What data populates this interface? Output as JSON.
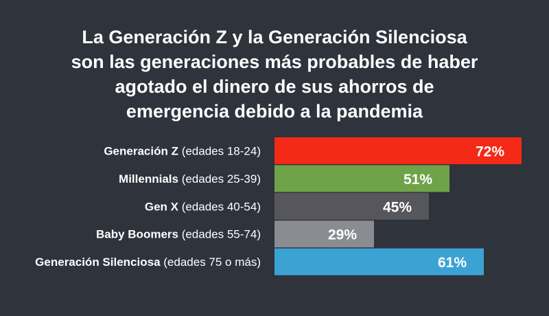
{
  "chart_data": {
    "type": "bar",
    "orientation": "horizontal",
    "title_lines": [
      "La Generación Z y la Generación Silenciosa",
      "son las generaciones más probables de haber",
      "agotado el dinero de sus ahorros de",
      "emergencia debido a la pandemia"
    ],
    "categories": [
      "Generación Z",
      "Millennials",
      "Gen X",
      "Baby Boomers",
      "Generación Silenciosa"
    ],
    "category_details": [
      "(edades 18-24)",
      "(edades 25-39)",
      "(edades 40-54)",
      "(edades 55-74)",
      "(edades 75 o más)"
    ],
    "values": [
      72,
      51,
      45,
      29,
      61
    ],
    "value_labels": [
      "72%",
      "51%",
      "45%",
      "29%",
      "61%"
    ],
    "colors": [
      "#f42a17",
      "#6fa34a",
      "#57565c",
      "#8a8c91",
      "#3ba3d4"
    ],
    "xlim": [
      0,
      72
    ],
    "grid": false,
    "legend": "none"
  },
  "style": {
    "background": "#2e333c",
    "text_color": "#ffffff"
  }
}
